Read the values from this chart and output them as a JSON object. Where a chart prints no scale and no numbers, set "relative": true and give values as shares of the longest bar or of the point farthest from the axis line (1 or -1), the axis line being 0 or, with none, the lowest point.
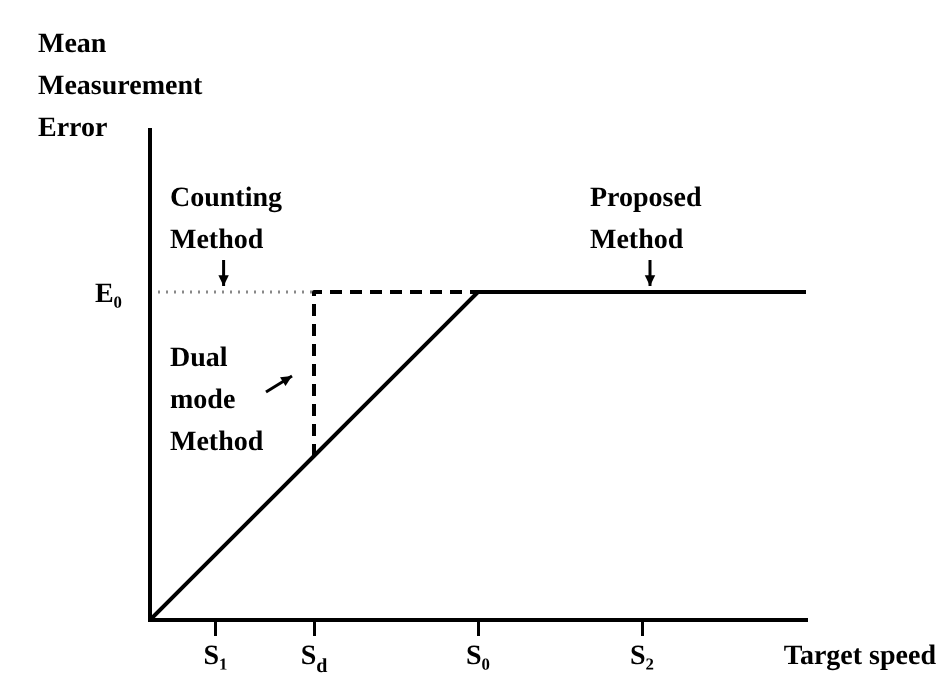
{
  "chart_data": {
    "type": "line",
    "relative": true,
    "xlabel": "Target speed",
    "categories": [
      null,
      null,
      "S₁",
      null,
      null,
      "S$_{d}$",
      null,
      null,
      null,
      null,
      "S₀",
      null,
      null,
      null,
      null,
      "S₂",
      null,
      null,
      null,
      null,
      null
    ],
    "grid": false,
    "legend": false,
    "marker": "none",
    "series": [
      {
        "values": [
          0,
          0.1,
          0.2,
          0.3,
          0.4,
          0.5,
          0.6,
          0.7,
          0.8,
          0.9,
          1,
          1,
          1,
          1,
          1,
          1,
          1,
          1,
          1,
          1,
          1
        ],
        "color": "#000000",
        "line_style": "solid"
      },
      {
        "values": [
          1,
          1,
          1,
          1,
          1,
          1,
          null,
          null,
          null,
          null,
          null,
          null,
          null,
          null,
          null,
          null,
          null,
          null,
          null,
          null,
          null
        ],
        "color": "#888888",
        "line_style": "dotted"
      },
      {
        "type": "step",
        "values": [
          null,
          null,
          null,
          null,
          null,
          0.5,
          1,
          1,
          1,
          1,
          1,
          null,
          null,
          null,
          null,
          null,
          null,
          null,
          null,
          null,
          null
        ],
        "color": "#000000",
        "line_style": "dashed"
      }
    ],
    "annotations": [
      "Mean Measurement Error",
      "E₀",
      {
        "text": "Counting Method",
        "x": "S₁",
        "y": 1
      },
      "Dual mode Method",
      {
        "text": "Proposed Method",
        "x": "S₂",
        "y": 1
      }
    ]
  }
}
